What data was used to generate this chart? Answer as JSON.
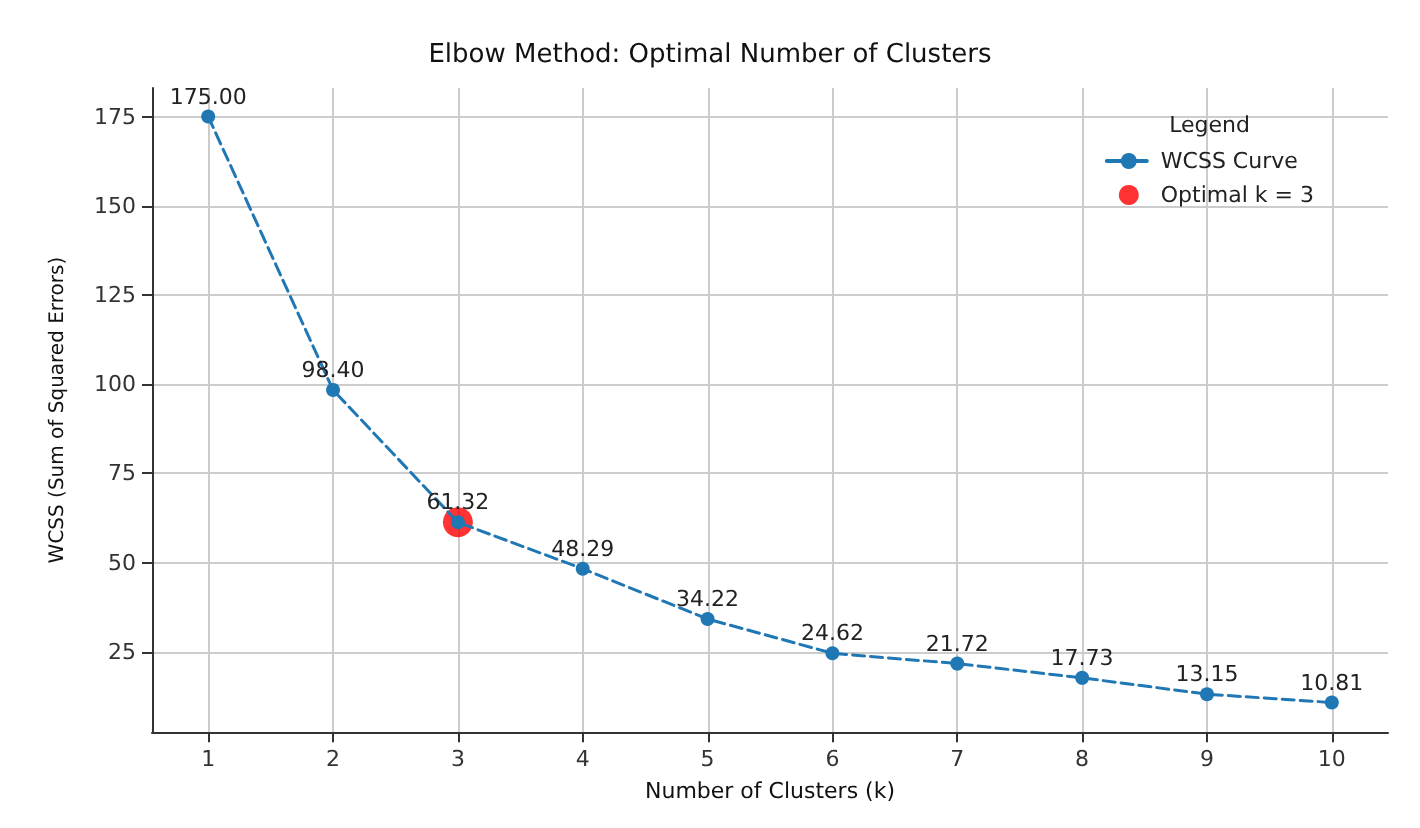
{
  "chart_data": {
    "type": "line",
    "title": "Elbow Method: Optimal Number of Clusters",
    "xlabel": "Number of Clusters (k)",
    "ylabel": "WCSS (Sum of Squared Errors)",
    "legend_title": "Legend",
    "x": [
      1,
      2,
      3,
      4,
      5,
      6,
      7,
      8,
      9,
      10
    ],
    "series": [
      {
        "name": "WCSS Curve",
        "color": "#1f77b4",
        "values": [
          175.0,
          98.4,
          61.32,
          48.29,
          34.22,
          24.62,
          21.72,
          17.73,
          13.15,
          10.81
        ],
        "value_labels": [
          "175.00",
          "98.40",
          "61.32",
          "48.29",
          "34.22",
          "24.62",
          "21.72",
          "17.73",
          "13.15",
          "10.81"
        ],
        "marker": "circle",
        "line_style": "dashed"
      },
      {
        "name": "Optimal k = 3",
        "type": "scatter",
        "color": "#ff0000",
        "x": [
          3
        ],
        "values": [
          61.32
        ],
        "marker": "circle"
      }
    ],
    "xlim": [
      0.55,
      10.45
    ],
    "xticks": [
      1,
      2,
      3,
      4,
      5,
      6,
      7,
      8,
      9,
      10
    ],
    "ylim": [
      2.5,
      183
    ],
    "yticks": [
      25,
      50,
      75,
      100,
      125,
      150,
      175
    ],
    "grid": true,
    "legend": "top right"
  }
}
